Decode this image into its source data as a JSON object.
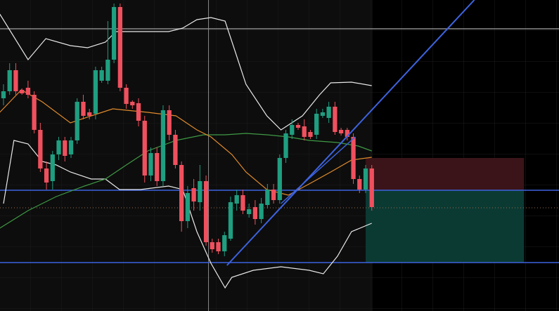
{
  "chart_data": {
    "type": "candlestick",
    "up_color": "#1f9e80",
    "down_color": "#f0505e",
    "xlim": [
      -0.57,
      90.5
    ],
    "ylim": [
      0,
      443
    ],
    "x": [
      0,
      1,
      2,
      3,
      4,
      5,
      6,
      7,
      8,
      9,
      10,
      11,
      12,
      13,
      14,
      15,
      16,
      17,
      18,
      19,
      20,
      21,
      22,
      23,
      24,
      25,
      26,
      27,
      28,
      29,
      30,
      31,
      32,
      33,
      34,
      35,
      36,
      37,
      38,
      39,
      40,
      41,
      42,
      43,
      44,
      45,
      46,
      47,
      48,
      49,
      50,
      51,
      52,
      53,
      54,
      55,
      56,
      57,
      58,
      59,
      60
    ],
    "open": [
      303,
      313,
      343,
      315,
      318,
      308,
      258,
      203,
      185,
      223,
      243,
      223,
      243,
      298,
      283,
      281,
      328,
      328,
      358,
      433,
      318,
      298,
      296,
      271,
      193,
      225,
      185,
      286,
      251,
      208,
      128,
      175,
      155,
      185,
      98,
      98,
      85,
      103,
      153,
      165,
      138,
      148,
      131,
      151,
      173,
      158,
      218,
      251,
      265,
      263,
      255,
      251,
      278,
      275,
      291,
      258,
      258,
      248,
      188,
      173,
      203
    ],
    "high": [
      323,
      353,
      353,
      317,
      328,
      313,
      268,
      213,
      228,
      248,
      248,
      248,
      303,
      308,
      288,
      348,
      348,
      413,
      438,
      438,
      323,
      300,
      303,
      278,
      233,
      233,
      293,
      293,
      258,
      213,
      178,
      188,
      208,
      193,
      103,
      103,
      113,
      163,
      173,
      173,
      153,
      158,
      161,
      181,
      181,
      223,
      258,
      273,
      268,
      273,
      258,
      288,
      288,
      298,
      298,
      261,
      261,
      253,
      193,
      208,
      208
    ],
    "low": [
      293,
      308,
      308,
      308,
      303,
      253,
      198,
      173,
      173,
      215,
      213,
      218,
      238,
      273,
      273,
      273,
      325,
      323,
      353,
      313,
      288,
      288,
      263,
      183,
      185,
      178,
      178,
      243,
      203,
      113,
      118,
      143,
      143,
      93,
      83,
      81,
      78,
      100,
      143,
      138,
      133,
      123,
      125,
      146,
      153,
      153,
      211,
      245,
      258,
      243,
      245,
      245,
      275,
      268,
      251,
      250,
      243,
      181,
      168,
      168,
      143
    ],
    "close": [
      313,
      343,
      313,
      310,
      308,
      258,
      203,
      183,
      223,
      243,
      221,
      243,
      298,
      278,
      278,
      343,
      343,
      358,
      433,
      318,
      295,
      293,
      271,
      193,
      225,
      185,
      286,
      251,
      208,
      128,
      168,
      156,
      185,
      98,
      88,
      85,
      108,
      155,
      165,
      143,
      145,
      131,
      153,
      173,
      158,
      218,
      253,
      265,
      261,
      248,
      248,
      281,
      283,
      291,
      255,
      253,
      248,
      188,
      173,
      203,
      148
    ],
    "lines": [
      {
        "color": "#e8e8e8",
        "x": [
          -0.6,
          4,
          6.9,
          10.9,
          13.7,
          16.6,
          18.3,
          22.3,
          26.9,
          29.2,
          31.5,
          33.8,
          36.1,
          37.8,
          39.5,
          42.9,
          45.2,
          48.7,
          51.5,
          53.3,
          56.7,
          60
        ],
        "values": [
          423,
          358,
          388,
          378,
          375,
          383,
          398,
          398,
          398,
          403,
          415,
          418,
          413,
          368,
          323,
          278,
          258,
          278,
          308,
          325,
          326,
          321
        ]
      },
      {
        "color": "#e8e8e8",
        "x": [
          0,
          1.7,
          4,
          6.3,
          8.6,
          10.9,
          14.3,
          16.6,
          18.9,
          22.3,
          26.9,
          29.2,
          31.5,
          33.8,
          36.1,
          37.2,
          40.7,
          45.2,
          49.8,
          52.1,
          54.4,
          56.7,
          60
        ],
        "values": [
          153,
          243,
          238,
          213,
          208,
          198,
          188,
          188,
          173,
          173,
          178,
          173,
          113,
          68,
          33,
          48,
          58,
          63,
          58,
          53,
          78,
          113,
          125
        ]
      },
      {
        "color": "#3f9a45",
        "x": [
          -0.6,
          4,
          8.6,
          13.2,
          16.6,
          20,
          23.5,
          28.1,
          32.6,
          36.1,
          39.5,
          42.9,
          46.4,
          49.8,
          54.4,
          57.8,
          60
        ],
        "values": [
          118,
          143,
          163,
          178,
          188,
          208,
          228,
          243,
          251,
          251,
          253,
          251,
          248,
          243,
          240,
          235,
          228
        ]
      },
      {
        "color": "#e08a2c",
        "x": [
          -0.6,
          2.9,
          6.3,
          10.9,
          14.3,
          17.8,
          20,
          23.5,
          28.1,
          31.5,
          33.8,
          37.2,
          39.5,
          42.9,
          46.4,
          49.8,
          53.3,
          56.7,
          60
        ],
        "values": [
          283,
          315,
          298,
          268,
          278,
          288,
          286,
          283,
          278,
          258,
          248,
          223,
          198,
          173,
          165,
          181,
          198,
          215,
          219
        ]
      }
    ],
    "hlines": [
      {
        "value": 172,
        "color": "#3d63e0"
      },
      {
        "value": 69,
        "color": "#3d63e0"
      },
      {
        "value": 402,
        "color": "#8a8a8a"
      },
      {
        "value": 147,
        "color": "#9a6a4a"
      }
    ],
    "vline": {
      "x": 33.4,
      "color": "#8a8a8a"
    },
    "segments": [
      {
        "color": "#3d63e0",
        "x": [
          36.4,
          76.7
        ],
        "values": [
          65,
          443
        ]
      },
      {
        "color": "#3d63e0",
        "x": [
          45.2,
          57.3
        ],
        "values": [
          153,
          248
        ]
      }
    ],
    "position": {
      "x": [
        59,
        84.8
      ],
      "top": 218,
      "entry": 172,
      "bottom": 69,
      "loss_color": "#3a1418",
      "profit_color": "#0b3a33"
    }
  }
}
